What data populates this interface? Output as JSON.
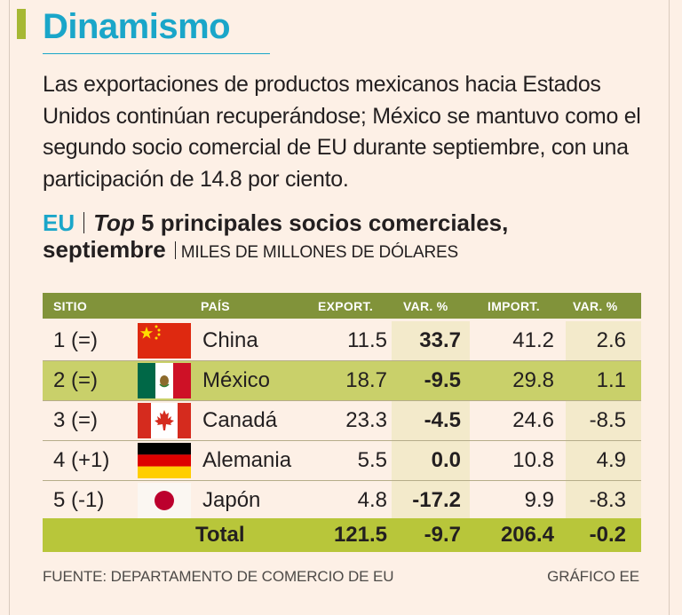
{
  "title": "Dinamismo",
  "lede": "Las exportaciones de productos mexicanos hacia Estados Unidos continúan recuperándose; México se mantuvo como el segundo socio comercial de EU durante septiembre, con una participación de 14.8 por ciento.",
  "subhead": {
    "region": "EU",
    "top": "Top",
    "title_rest": "5 principales socios comerciales,",
    "title_line2": "septiembre",
    "units": "MILES DE MILLONES DE DÓLARES"
  },
  "table": {
    "headers": {
      "sitio": "SITIO",
      "pais": "PAÍS",
      "export": "EXPORT.",
      "var_export": "VAR. %",
      "import": "IMPORT.",
      "var_import": "VAR. %"
    },
    "rows": [
      {
        "rank": "1 (=)",
        "country": "China",
        "flag": "china-flag",
        "export": "11.5",
        "var_export": "33.7",
        "import": "41.2",
        "var_import": "2.6"
      },
      {
        "rank": "2 (=)",
        "country": "México",
        "flag": "mexico-flag",
        "export": "18.7",
        "var_export": "-9.5",
        "import": "29.8",
        "var_import": "1.1"
      },
      {
        "rank": "3 (=)",
        "country": "Canadá",
        "flag": "canada-flag",
        "export": "23.3",
        "var_export": "-4.5",
        "import": "24.6",
        "var_import": "-8.5"
      },
      {
        "rank": "4 (+1)",
        "country": "Alemania",
        "flag": "germany-flag",
        "export": "5.5",
        "var_export": "0.0",
        "import": "10.8",
        "var_import": "4.9"
      },
      {
        "rank": "5 (-1)",
        "country": "Japón",
        "flag": "japan-flag",
        "export": "4.8",
        "var_export": "-17.2",
        "import": "9.9",
        "var_import": "-8.3"
      }
    ],
    "total": {
      "label": "Total",
      "export": "121.5",
      "var_export": "-9.7",
      "import": "206.4",
      "var_import": "-0.2"
    }
  },
  "footer": {
    "source": "FUENTE: DEPARTAMENTO DE COMERCIO DE EU",
    "credit": "GRÁFICO EE"
  },
  "colors": {
    "accent_blue": "#1aa6c9",
    "header_green": "#81933a",
    "highlight_green": "#c9d06a",
    "total_green": "#b8c63a",
    "cream": "#f3eacb",
    "background": "#fdf0e6"
  }
}
